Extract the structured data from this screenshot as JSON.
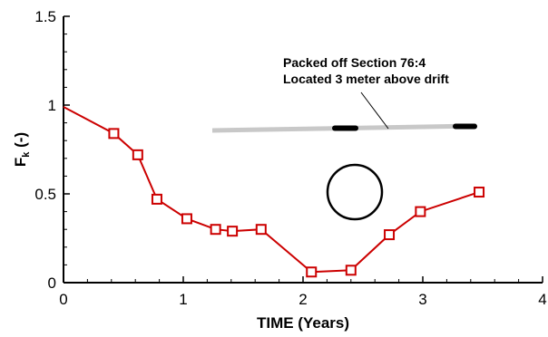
{
  "chart_data": {
    "type": "line",
    "title": "",
    "xlabel": "TIME (Years)",
    "ylabel": "F",
    "ylabel_sub": "k",
    "ylabel_suffix": " (-)",
    "xlim": [
      0,
      4
    ],
    "ylim": [
      0,
      1.5
    ],
    "xticks": [
      0,
      1,
      2,
      3,
      4
    ],
    "xtick_labels": [
      "0",
      "1",
      "2",
      "3",
      "4"
    ],
    "yticks": [
      0,
      0.5,
      1,
      1.5
    ],
    "ytick_labels": [
      "0",
      "0.5",
      "1",
      "1.5"
    ],
    "grid": false,
    "series": [
      {
        "color": "#cc0000",
        "marker": "square-open",
        "x": [
          0,
          0.42,
          0.62,
          0.78,
          1.03,
          1.27,
          1.41,
          1.65,
          2.07,
          2.4,
          2.72,
          2.98,
          3.47
        ],
        "y": [
          0.99,
          0.84,
          0.72,
          0.47,
          0.36,
          0.3,
          0.29,
          0.3,
          0.06,
          0.07,
          0.27,
          0.4,
          0.51
        ],
        "marker_x": [
          0.42,
          0.62,
          0.78,
          1.03,
          1.27,
          1.41,
          1.65,
          2.07,
          2.4,
          2.72,
          2.98,
          3.47
        ],
        "marker_y": [
          0.84,
          0.72,
          0.47,
          0.36,
          0.3,
          0.29,
          0.3,
          0.06,
          0.07,
          0.27,
          0.4,
          0.51
        ]
      }
    ],
    "annotations": [
      "Packed off Section 76:4",
      "Located 3 meter above drift"
    ],
    "colors": {
      "series": "#cc0000",
      "borehole": "#c8c8c8",
      "packer": "#000000",
      "axis": "#000000"
    }
  }
}
